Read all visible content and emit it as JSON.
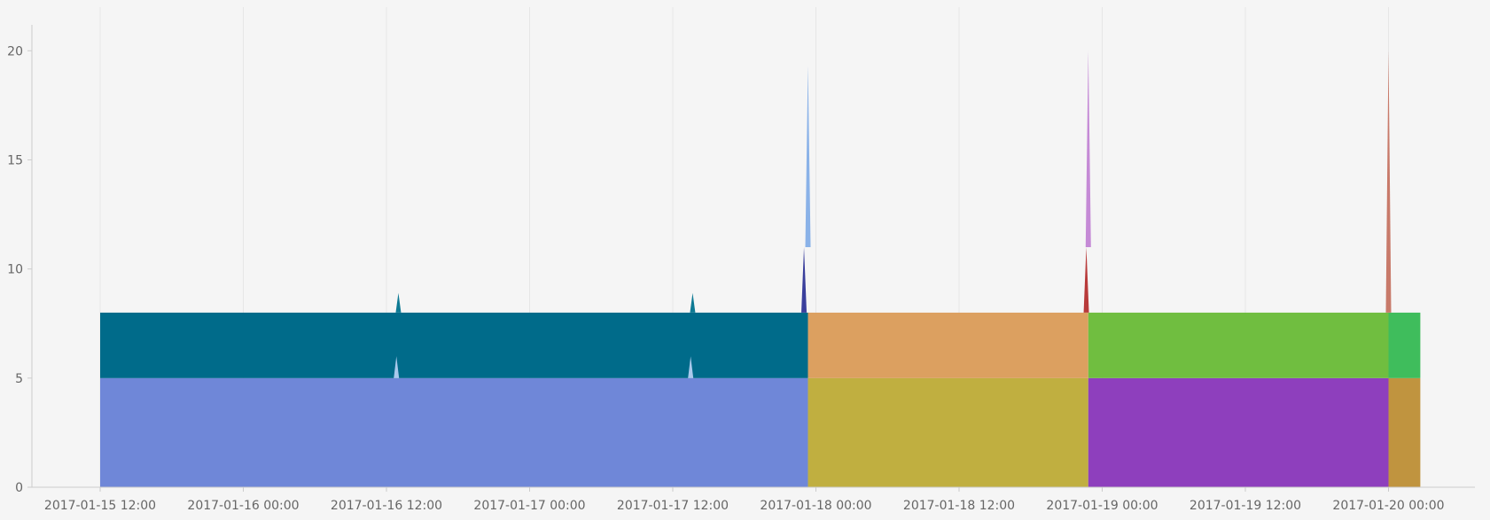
{
  "chart_data": {
    "type": "area",
    "stacked": true,
    "title": "",
    "xlabel": "",
    "ylabel": "",
    "ylim": [
      0,
      22
    ],
    "xlim": [
      "2017-01-15 12:00",
      "2017-01-20 12:00"
    ],
    "y_ticks": [
      0,
      5,
      10,
      15,
      20
    ],
    "x_ticks": [
      "2017-01-15 12:00",
      "2017-01-16 00:00",
      "2017-01-16 12:00",
      "2017-01-17 00:00",
      "2017-01-17 12:00",
      "2017-01-18 00:00",
      "2017-01-18 12:00",
      "2017-01-19 00:00",
      "2017-01-19 12:00",
      "2017-01-20 00:00"
    ],
    "grid": true,
    "legend": "none",
    "blocks": [
      {
        "start": "2017-01-15 12:00",
        "end": "2017-01-17 23:20",
        "y0": 0,
        "y1": 5,
        "color": "#6f87d8"
      },
      {
        "start": "2017-01-15 12:00",
        "end": "2017-01-17 23:20",
        "y0": 5,
        "y1": 8,
        "color": "#006b8a"
      },
      {
        "start": "2017-01-17 23:20",
        "end": "2017-01-18 22:50",
        "y0": 0,
        "y1": 5,
        "color": "#c0af40"
      },
      {
        "start": "2017-01-17 23:20",
        "end": "2017-01-18 22:50",
        "y0": 5,
        "y1": 8,
        "color": "#dca060"
      },
      {
        "start": "2017-01-18 22:50",
        "end": "2017-01-20 00:00",
        "y0": 0,
        "y1": 5,
        "color": "#8e3fbd"
      },
      {
        "start": "2017-01-18 22:50",
        "end": "2017-01-20 00:00",
        "y0": 5,
        "y1": 8,
        "color": "#70be40"
      },
      {
        "start": "2017-01-20 00:00",
        "end": "2017-01-20 02:40",
        "y0": 0,
        "y1": 5,
        "color": "#c0943f"
      },
      {
        "start": "2017-01-20 00:00",
        "end": "2017-01-20 02:40",
        "y0": 5,
        "y1": 8,
        "color": "#3fbd5c"
      }
    ],
    "spikes": [
      {
        "x": "2017-01-16 13:00",
        "base": 8,
        "peak": 8.9,
        "color": "#0e7a94"
      },
      {
        "x": "2017-01-16 12:50",
        "base": 5,
        "peak": 6,
        "color": "#a9c9ec"
      },
      {
        "x": "2017-01-17 13:40",
        "base": 8,
        "peak": 8.9,
        "color": "#0e7a94"
      },
      {
        "x": "2017-01-17 13:30",
        "base": 5,
        "peak": 6,
        "color": "#a9c9ec"
      },
      {
        "x": "2017-01-17 23:00",
        "base": 8,
        "peak": 11,
        "color": "#3a3f9c"
      },
      {
        "x": "2017-01-17 23:20",
        "base": 11,
        "peak": 19.3,
        "color": "#8ab2e8"
      },
      {
        "x": "2017-01-18 22:40",
        "base": 8,
        "peak": 11,
        "color": "#b83a3a"
      },
      {
        "x": "2017-01-18 22:50",
        "base": 11,
        "peak": 20,
        "color": "#c58ad6"
      },
      {
        "x": "2017-01-20 00:00",
        "base": 8,
        "peak": 20,
        "color": "#c87a6a"
      }
    ],
    "colors": {
      "background": "#f5f5f5",
      "axis": "#cccccc",
      "gridline": "#e6e6e6",
      "tick_text": "#666666"
    }
  }
}
